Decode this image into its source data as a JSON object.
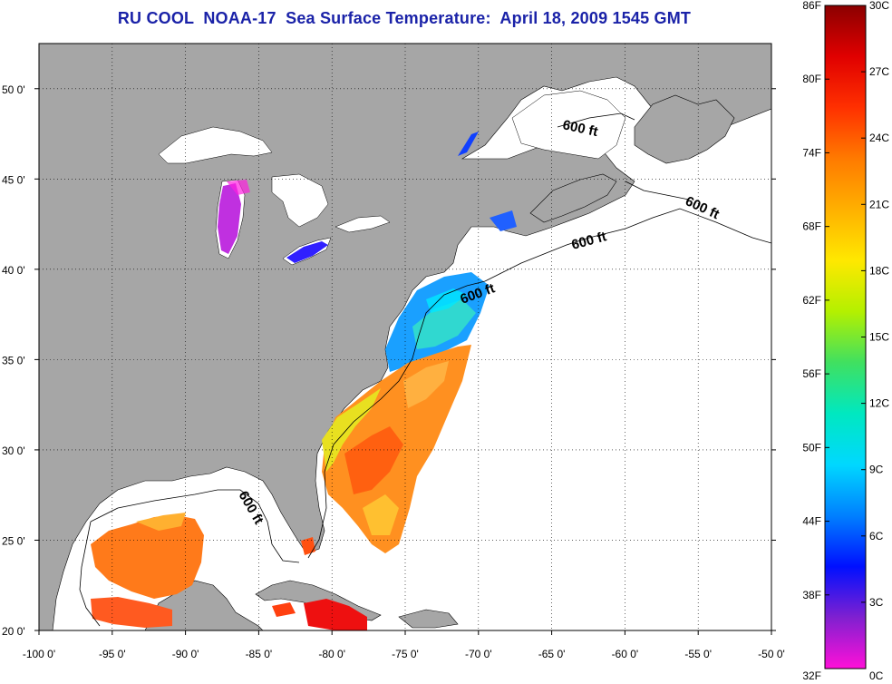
{
  "title": "RU COOL  NOAA-17  Sea Surface Temperature:  April 18, 2009 1545 GMT",
  "map": {
    "lon_range": [
      -100,
      -50
    ],
    "lat_range": [
      20,
      52.5
    ],
    "x_ticks": [
      {
        "value": -100,
        "label": "-100 0'"
      },
      {
        "value": -95,
        "label": "-95 0'"
      },
      {
        "value": -90,
        "label": "-90 0'"
      },
      {
        "value": -85,
        "label": "-85 0'"
      },
      {
        "value": -80,
        "label": "-80 0'"
      },
      {
        "value": -75,
        "label": "-75 0'"
      },
      {
        "value": -70,
        "label": "-70 0'"
      },
      {
        "value": -65,
        "label": "-65 0'"
      },
      {
        "value": -60,
        "label": "-60 0'"
      },
      {
        "value": -55,
        "label": "-55 0'"
      },
      {
        "value": -50,
        "label": "-50 0'"
      }
    ],
    "y_ticks": [
      {
        "value": 20,
        "label": "20 0'"
      },
      {
        "value": 25,
        "label": "25 0'"
      },
      {
        "value": 30,
        "label": "30 0'"
      },
      {
        "value": 35,
        "label": "35 0'"
      },
      {
        "value": 40,
        "label": "40 0'"
      },
      {
        "value": 45,
        "label": "45 0'"
      },
      {
        "value": 50,
        "label": "50 0'"
      }
    ],
    "grid": true,
    "land_color": "#a6a6a6",
    "water_color": "#ffffff",
    "contour_labels": [
      "600 ft",
      "600 ft",
      "600 ft",
      "600 ft",
      "600 ft"
    ]
  },
  "colorbar": {
    "colors_top_to_bottom": [
      "#8b0000",
      "#e00000",
      "#ff3000",
      "#ff7a00",
      "#ffb000",
      "#ffe800",
      "#b4f000",
      "#40e060",
      "#00e8c0",
      "#00d8ff",
      "#0080ff",
      "#0010ff",
      "#8020d0",
      "#ff10d8"
    ],
    "fahrenheit_labels": [
      "86F",
      "80F",
      "74F",
      "68F",
      "62F",
      "56F",
      "50F",
      "44F",
      "38F",
      "32F"
    ],
    "celsius_labels": [
      "30C",
      "27C",
      "24C",
      "21C",
      "18C",
      "15C",
      "12C",
      "9C",
      "6C",
      "3C",
      "0C"
    ]
  }
}
